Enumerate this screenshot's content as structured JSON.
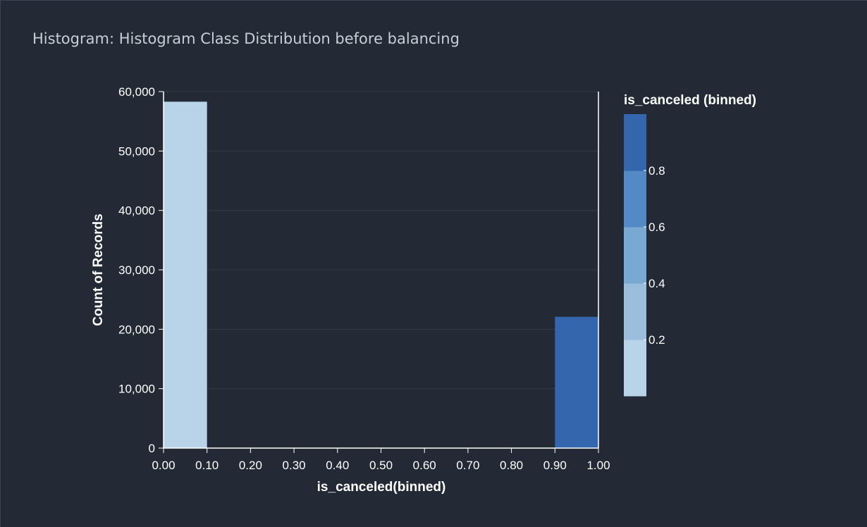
{
  "panel": {
    "title": "Histogram: Histogram Class Distribution before balancing"
  },
  "chart_data": {
    "type": "bar",
    "title": "",
    "xlabel": "is_canceled(binned)",
    "ylabel": "Count of Records",
    "xlim": [
      0.0,
      1.0
    ],
    "ylim": [
      0,
      60000
    ],
    "x_ticks": [
      "0.00",
      "0.10",
      "0.20",
      "0.30",
      "0.40",
      "0.50",
      "0.60",
      "0.70",
      "0.80",
      "0.90",
      "1.00"
    ],
    "y_ticks": [
      "0",
      "10,000",
      "20,000",
      "30,000",
      "40,000",
      "50,000",
      "60,000"
    ],
    "bins": [
      {
        "start": 0.0,
        "end": 0.1,
        "value": 58300,
        "color": "#b9d3e8"
      },
      {
        "start": 0.9,
        "end": 1.0,
        "value": 22100,
        "color": "#3366ac"
      }
    ],
    "grid": true,
    "legend": {
      "title": "is_canceled (binned)",
      "placement": "right",
      "labels": [
        "0.2",
        "0.4",
        "0.6",
        "0.8"
      ],
      "colors": [
        "#b9d3e8",
        "#9abedc",
        "#79a8d2",
        "#5389c4",
        "#3366ac"
      ]
    }
  }
}
